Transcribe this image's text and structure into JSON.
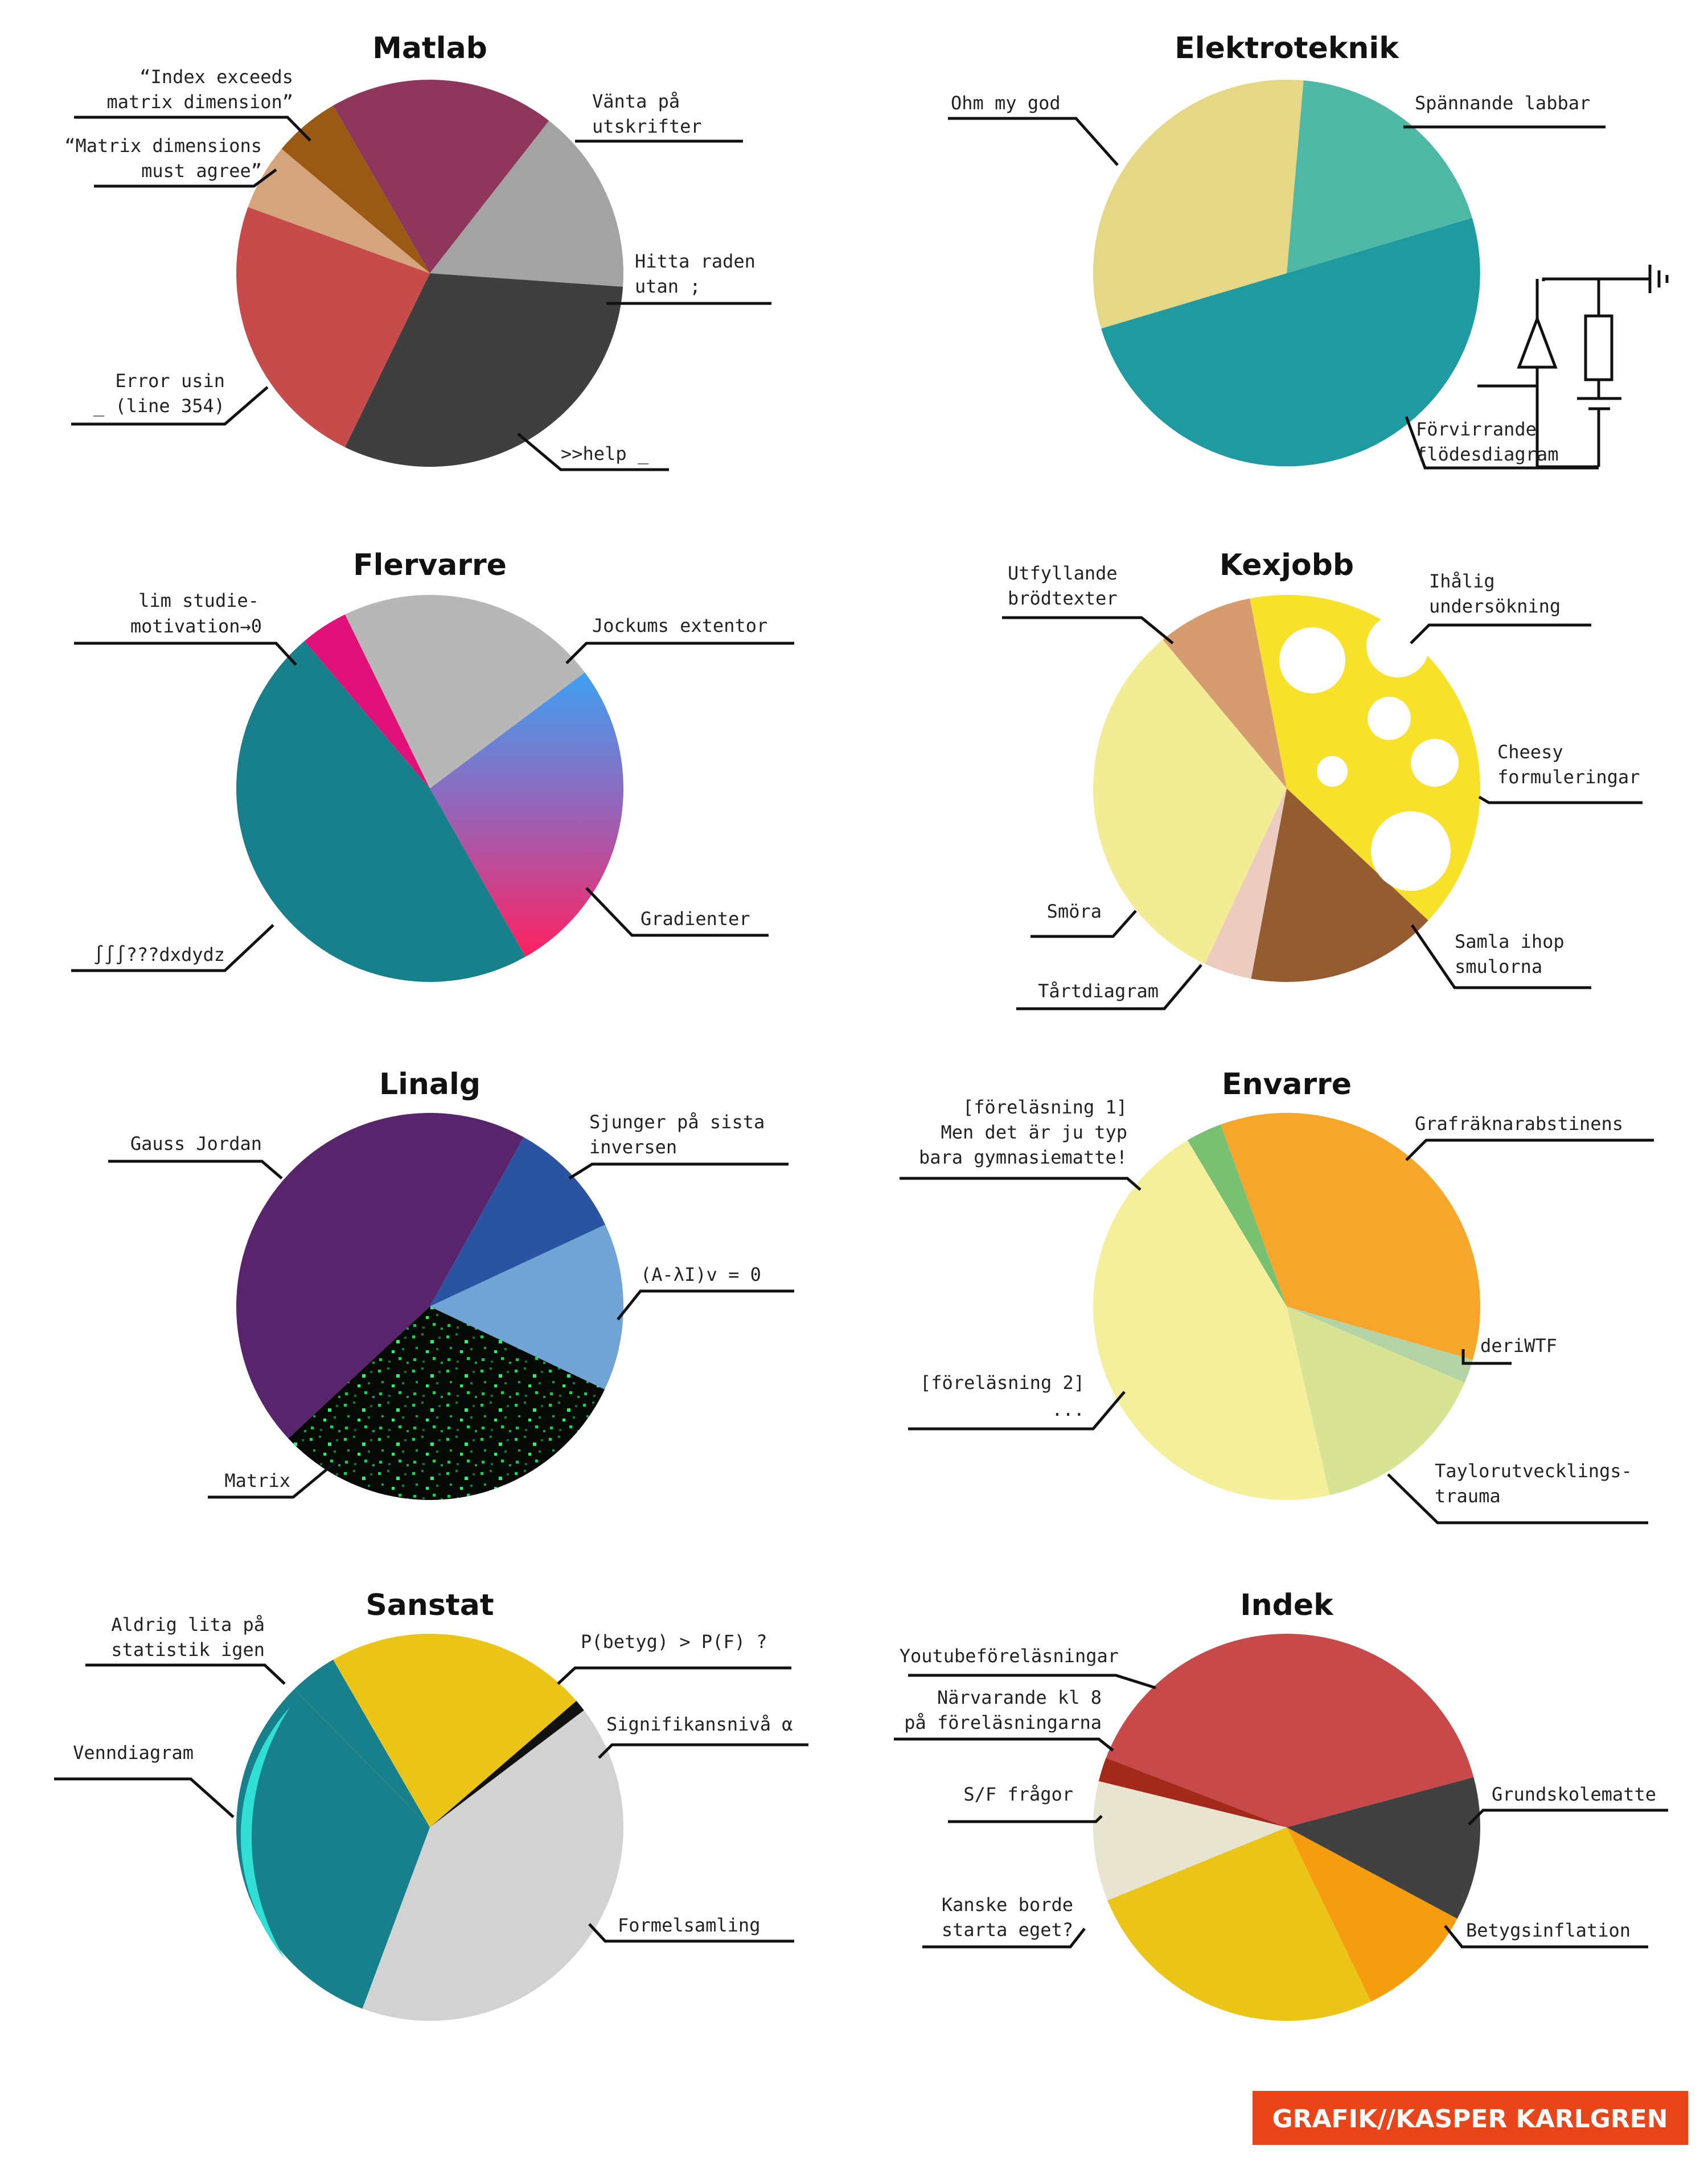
{
  "credit": "GRAFIK//KASPER KARLGREN",
  "chart_data": [
    {
      "type": "pie",
      "title": "Matlab",
      "slices": [
        {
          "label": "Vänta på utskrifter",
          "value": 17,
          "color": "#8e365b"
        },
        {
          "label": "Hitta raden utan ;",
          "value": 14,
          "color": "#a3a3a3"
        },
        {
          "label": ">>help _",
          "value": 28,
          "color": "#3f3f3f"
        },
        {
          "label": "Error usin _ (line 354)",
          "value": 21,
          "color": "#c84b4b"
        },
        {
          "label": "“Matrix dimensions must agree”",
          "value": 5,
          "color": "#d4a57c"
        },
        {
          "label": "“Index exceeds matrix dimension”",
          "value": 5,
          "color": "#9a5a14"
        }
      ]
    },
    {
      "type": "pie",
      "title": "Elektroteknik",
      "slices": [
        {
          "label": "Spännande labbar",
          "value": 19,
          "color": "#4fb8a4"
        },
        {
          "label": "Förvirrande flödesdiagram",
          "value": 50,
          "color": "#1f9aa1"
        },
        {
          "label": "Ohm my god",
          "value": 31,
          "color": "#e4d785"
        }
      ]
    },
    {
      "type": "pie",
      "title": "Flervarre",
      "slices": [
        {
          "label": "Jockums extentor",
          "value": 22,
          "color": "#b7b7b7"
        },
        {
          "label": "Gradienter",
          "value": 27,
          "color": "#8a6fd4"
        },
        {
          "label": "∫∫∫???dxdydz",
          "value": 47,
          "color": "#18808b"
        },
        {
          "label": "lim studie-motivation→0",
          "value": 4,
          "color": "#e0127a"
        }
      ]
    },
    {
      "type": "pie",
      "title": "Kexjobb",
      "slices": [
        {
          "label": "Ihålig undersökning / Cheesy formuleringar",
          "value": 40,
          "color": "#f8e12b"
        },
        {
          "label": "Samla ihop smulorna",
          "value": 16,
          "color": "#955c32"
        },
        {
          "label": "Tårtdiagram",
          "value": 4,
          "color": "#eccbc0"
        },
        {
          "label": "Smöra",
          "value": 32,
          "color": "#f2ec95"
        },
        {
          "label": "Utfyllande brödtexter",
          "value": 8,
          "color": "#d69b6e"
        }
      ]
    },
    {
      "type": "pie",
      "title": "Linalg",
      "slices": [
        {
          "label": "Sjunger på sista inversen",
          "value": 10,
          "color": "#2a54a1"
        },
        {
          "label": "(A-λI)v = 0",
          "value": 14,
          "color": "#70a4d4"
        },
        {
          "label": "Matrix",
          "value": 31,
          "color": "#0a120c"
        },
        {
          "label": "Gauss Jordan",
          "value": 45,
          "color": "#58246b"
        }
      ]
    },
    {
      "type": "pie",
      "title": "Envarre",
      "slices": [
        {
          "label": "Grafräknarabstinens",
          "value": 35,
          "color": "#f6a62a"
        },
        {
          "label": "deriWTF",
          "value": 2,
          "color": "#b4d4a7"
        },
        {
          "label": "Taylorutvecklings-trauma",
          "value": 15,
          "color": "#d8e493"
        },
        {
          "label": "[föreläsning 2] ...",
          "value": 45,
          "color": "#f3ef9b"
        },
        {
          "label": "[föreläsning 1] Men det är ju typ bara gymnasiematte!",
          "value": 3,
          "color": "#79c073"
        }
      ]
    },
    {
      "type": "pie",
      "title": "Sanstat",
      "slices": [
        {
          "label": "P(betyg) > P(F) ?",
          "value": 22,
          "color": "#eac518"
        },
        {
          "label": "Signifikansnivå α",
          "value": 1,
          "color": "#111111"
        },
        {
          "label": "Formelsamling",
          "value": 41,
          "color": "#d2d2d2"
        },
        {
          "label": "Venndiagram",
          "value": 32,
          "color": "#18808b"
        },
        {
          "label": "Aldrig lita på statistik igen",
          "value": 4,
          "color": "#18808b"
        }
      ]
    },
    {
      "type": "pie",
      "title": "Indek",
      "slices": [
        {
          "label": "Youtubeföreläsningar",
          "value": 40,
          "color": "#c8494a"
        },
        {
          "label": "Grundskolematte",
          "value": 12,
          "color": "#414141"
        },
        {
          "label": "Betygsinflation",
          "value": 10,
          "color": "#f59c0f"
        },
        {
          "label": "Kanske borde starta eget?",
          "value": 26,
          "color": "#eac518"
        },
        {
          "label": "S/F frågor",
          "value": 10,
          "color": "#e7e4cf"
        },
        {
          "label": "Närvarande kl 8 på föreläsningarna",
          "value": 2,
          "color": "#a32a1b"
        }
      ]
    }
  ],
  "labels": {
    "matlab": {
      "index_1": "“Index exceeds",
      "index_2": "matrix dimension”",
      "matrix_1": "“Matrix dimensions",
      "matrix_2": "must agree”",
      "vanta_1": "Vänta på",
      "vanta_2": "utskrifter",
      "hitta_1": "Hitta raden",
      "hitta_2": "utan ;",
      "error_1": "Error usin",
      "error_2": "_ (line 354)",
      "help": ">>help _"
    },
    "elektro": {
      "ohm": "Ohm my god",
      "spann": "Spännande labbar",
      "forv_1": "Förvirrande",
      "forv_2": "flödesdiagram"
    },
    "flervarre": {
      "lim_1": "lim studie-",
      "lim_2": "motivation→0",
      "jock": "Jockums extentor",
      "grad": "Gradienter",
      "int": "∫∫∫???dxdydz"
    },
    "kexjobb": {
      "utf_1": "Utfyllande",
      "utf_2": "brödtexter",
      "iha_1": "Ihålig",
      "iha_2": "undersökning",
      "che_1": "Cheesy",
      "che_2": "formuleringar",
      "smora": "Smöra",
      "samla_1": "Samla ihop",
      "samla_2": "smulorna",
      "tart": "Tårtdiagram"
    },
    "linalg": {
      "gauss": "Gauss Jordan",
      "sjung_1": "Sjunger på sista",
      "sjung_2": "inversen",
      "eig": "(A-λI)v = 0",
      "matrix": "Matrix"
    },
    "envarre": {
      "f1_1": "[föreläsning 1]",
      "f1_2": "Men det är ju typ",
      "f1_3": "bara gymnasiematte!",
      "graf": "Grafräknarabstinens",
      "deri": "deriWTF",
      "f2_1": "[föreläsning 2]",
      "f2_2": "...",
      "tay_1": "Taylorutvecklings-",
      "tay_2": "trauma"
    },
    "sanstat": {
      "ald_1": "Aldrig lita på",
      "ald_2": "statistik igen",
      "pb": "P(betyg) > P(F) ?",
      "sig": "Signifikansnivå α",
      "venn": "Venndiagram",
      "form": "Formelsamling"
    },
    "indek": {
      "yt": "Youtubeföreläsningar",
      "nar_1": "Närvarande kl 8",
      "nar_2": "på föreläsningarna",
      "sf": "S/F frågor",
      "kan_1": "Kanske borde",
      "kan_2": "starta eget?",
      "grund": "Grundskolematte",
      "betyg": "Betygsinflation"
    }
  }
}
